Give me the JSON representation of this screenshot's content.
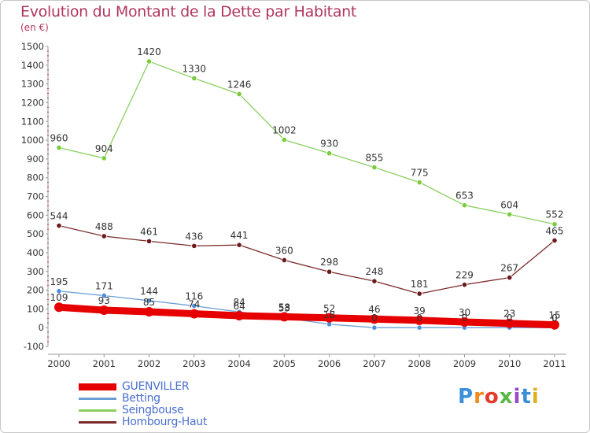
{
  "title": "Evolution du Montant de la Dette par Habitant",
  "subtitle": "(en €)",
  "logo": {
    "letters": [
      "P",
      "r",
      "o",
      "x",
      "i",
      "t",
      "i"
    ],
    "colors": [
      "#3a8fd8",
      "#f08a1c",
      "#e23c2c",
      "#58b848",
      "#9a48c8",
      "#3a8fd8",
      "#e0b020"
    ]
  },
  "chart_data": {
    "type": "line",
    "x": [
      "2000",
      "2001",
      "2002",
      "2003",
      "2004",
      "2005",
      "2006",
      "2007",
      "2008",
      "2009",
      "2010",
      "2011"
    ],
    "ylim": [
      -100,
      1500
    ],
    "yticks": [
      -100,
      0,
      100,
      200,
      300,
      400,
      500,
      600,
      700,
      800,
      900,
      1000,
      1100,
      1200,
      1300,
      1400,
      1500
    ],
    "grid": false,
    "legend_position": "bottom-left",
    "series": [
      {
        "name": "GUENVILLER",
        "color": "#e60000",
        "width": 9,
        "values": [
          109,
          93,
          85,
          74,
          64,
          58,
          52,
          46,
          39,
          30,
          23,
          15
        ],
        "labels": [
          "109",
          "93",
          "85",
          "74",
          "64",
          "58",
          "52",
          "46",
          "39",
          "30",
          "23",
          "15"
        ]
      },
      {
        "name": "Betting",
        "color": "#6a9fd4",
        "width": 1.3,
        "values": [
          195,
          171,
          144,
          116,
          84,
          53,
          18,
          0,
          0,
          0,
          0,
          0
        ],
        "labels": [
          "195",
          "171",
          "144",
          "116",
          "84",
          "53",
          "18",
          "0",
          "0",
          "0",
          "0",
          "0"
        ]
      },
      {
        "name": "Seingbouse",
        "color": "#8ad060",
        "width": 1.3,
        "values": [
          960,
          904,
          1420,
          1330,
          1246,
          1002,
          930,
          855,
          775,
          653,
          604,
          552
        ],
        "labels": [
          "960",
          "904",
          "1420",
          "1330",
          "1246",
          "1002",
          "930",
          "855",
          "775",
          "653",
          "604",
          "552"
        ]
      },
      {
        "name": "Hombourg-Haut",
        "color": "#7a2a2a",
        "width": 1.3,
        "values": [
          544,
          488,
          461,
          436,
          441,
          360,
          298,
          248,
          181,
          229,
          267,
          465
        ],
        "labels": [
          "544",
          "488",
          "461",
          "436",
          "441",
          "360",
          "298",
          "248",
          "181",
          "229",
          "267",
          "465"
        ]
      }
    ]
  }
}
